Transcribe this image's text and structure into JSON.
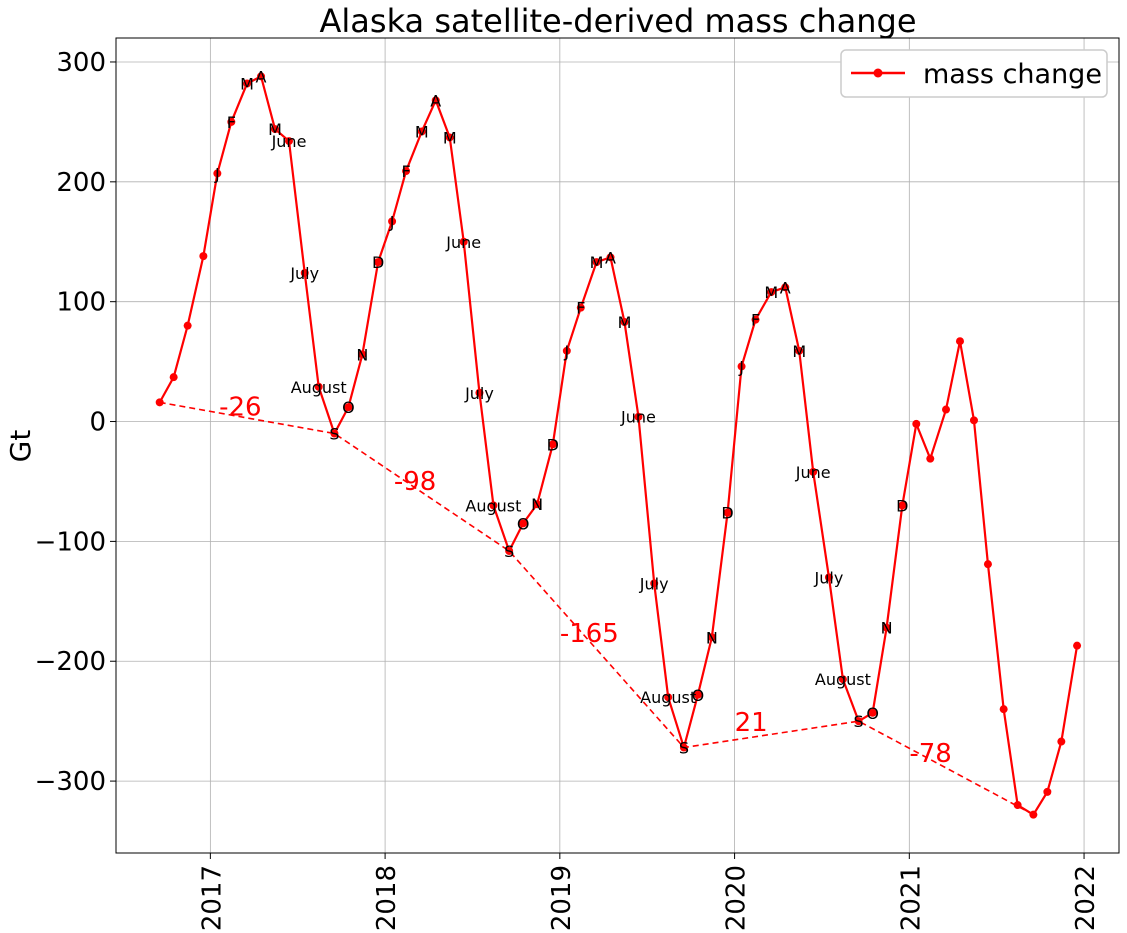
{
  "chart_data": {
    "type": "line",
    "title": "Alaska satellite-derived mass change",
    "ylabel": "Gt",
    "xlabel": "",
    "xlim": [
      2016.46,
      2022.2
    ],
    "ylim": [
      -360,
      320
    ],
    "grid": true,
    "legend_position": "top-right",
    "x_ticks": [
      2017,
      2018,
      2019,
      2020,
      2021,
      2022
    ],
    "x_tick_labels": [
      "2017",
      "2018",
      "2019",
      "2020",
      "2021",
      "2022"
    ],
    "y_ticks": [
      300,
      200,
      100,
      0,
      -100,
      -200,
      -300
    ],
    "y_tick_labels": [
      "300",
      "200",
      "100",
      "0",
      "−100",
      "−200",
      "−300"
    ],
    "series": [
      {
        "name": "mass change",
        "color": "#ff0000",
        "marker": "circle",
        "points": [
          {
            "x": 2016.71,
            "y": 16,
            "label": ""
          },
          {
            "x": 2016.79,
            "y": 37,
            "label": ""
          },
          {
            "x": 2016.87,
            "y": 80,
            "label": ""
          },
          {
            "x": 2016.96,
            "y": 138,
            "label": ""
          },
          {
            "x": 2017.04,
            "y": 207,
            "label": "J"
          },
          {
            "x": 2017.12,
            "y": 250,
            "label": "F"
          },
          {
            "x": 2017.21,
            "y": 282,
            "label": "M"
          },
          {
            "x": 2017.29,
            "y": 288,
            "label": "A"
          },
          {
            "x": 2017.37,
            "y": 244,
            "label": "M"
          },
          {
            "x": 2017.45,
            "y": 234,
            "label": "June"
          },
          {
            "x": 2017.54,
            "y": 124,
            "label": "July"
          },
          {
            "x": 2017.62,
            "y": 29,
            "label": "August"
          },
          {
            "x": 2017.71,
            "y": -10,
            "label": "S"
          },
          {
            "x": 2017.79,
            "y": 12,
            "label": "O"
          },
          {
            "x": 2017.87,
            "y": 56,
            "label": "N"
          },
          {
            "x": 2017.96,
            "y": 133,
            "label": "D"
          },
          {
            "x": 2018.04,
            "y": 167,
            "label": "J"
          },
          {
            "x": 2018.12,
            "y": 209,
            "label": "F"
          },
          {
            "x": 2018.21,
            "y": 242,
            "label": "M"
          },
          {
            "x": 2018.29,
            "y": 268,
            "label": "A"
          },
          {
            "x": 2018.37,
            "y": 237,
            "label": "M"
          },
          {
            "x": 2018.45,
            "y": 150,
            "label": "June"
          },
          {
            "x": 2018.54,
            "y": 24,
            "label": "July"
          },
          {
            "x": 2018.62,
            "y": -70,
            "label": "August"
          },
          {
            "x": 2018.71,
            "y": -108,
            "label": "S"
          },
          {
            "x": 2018.79,
            "y": -85,
            "label": "O"
          },
          {
            "x": 2018.87,
            "y": -69,
            "label": "N"
          },
          {
            "x": 2018.96,
            "y": -19,
            "label": "D"
          },
          {
            "x": 2019.04,
            "y": 59,
            "label": "J"
          },
          {
            "x": 2019.12,
            "y": 95,
            "label": "F"
          },
          {
            "x": 2019.21,
            "y": 133,
            "label": "M"
          },
          {
            "x": 2019.29,
            "y": 137,
            "label": "A"
          },
          {
            "x": 2019.37,
            "y": 83,
            "label": "M"
          },
          {
            "x": 2019.45,
            "y": 4,
            "label": "June"
          },
          {
            "x": 2019.54,
            "y": -135,
            "label": "July"
          },
          {
            "x": 2019.62,
            "y": -230,
            "label": "August"
          },
          {
            "x": 2019.71,
            "y": -272,
            "label": "S"
          },
          {
            "x": 2019.79,
            "y": -228,
            "label": "O"
          },
          {
            "x": 2019.87,
            "y": -180,
            "label": "N"
          },
          {
            "x": 2019.96,
            "y": -76,
            "label": "D"
          },
          {
            "x": 2020.04,
            "y": 46,
            "label": "J"
          },
          {
            "x": 2020.12,
            "y": 85,
            "label": "F"
          },
          {
            "x": 2020.21,
            "y": 108,
            "label": "M"
          },
          {
            "x": 2020.29,
            "y": 112,
            "label": "A"
          },
          {
            "x": 2020.37,
            "y": 59,
            "label": "M"
          },
          {
            "x": 2020.45,
            "y": -42,
            "label": "June"
          },
          {
            "x": 2020.54,
            "y": -130,
            "label": "July"
          },
          {
            "x": 2020.62,
            "y": -215,
            "label": "August"
          },
          {
            "x": 2020.71,
            "y": -250,
            "label": "S"
          },
          {
            "x": 2020.79,
            "y": -243,
            "label": "O"
          },
          {
            "x": 2020.87,
            "y": -172,
            "label": "N"
          },
          {
            "x": 2020.96,
            "y": -70,
            "label": "D"
          },
          {
            "x": 2021.04,
            "y": -2,
            "label": ""
          },
          {
            "x": 2021.12,
            "y": -31,
            "label": ""
          },
          {
            "x": 2021.21,
            "y": 10,
            "label": ""
          },
          {
            "x": 2021.29,
            "y": 67,
            "label": ""
          },
          {
            "x": 2021.37,
            "y": 1,
            "label": ""
          },
          {
            "x": 2021.45,
            "y": -119,
            "label": ""
          },
          {
            "x": 2021.54,
            "y": -240,
            "label": ""
          },
          {
            "x": 2021.62,
            "y": -320,
            "label": ""
          },
          {
            "x": 2021.71,
            "y": -328,
            "label": ""
          },
          {
            "x": 2021.79,
            "y": -309,
            "label": ""
          },
          {
            "x": 2021.87,
            "y": -267,
            "label": ""
          },
          {
            "x": 2021.96,
            "y": -187,
            "label": ""
          }
        ]
      }
    ],
    "trend_line": {
      "color": "#ff0000",
      "style": "dashed",
      "points": [
        {
          "x": 2016.71,
          "y": 16
        },
        {
          "x": 2017.71,
          "y": -10
        },
        {
          "x": 2018.71,
          "y": -108
        },
        {
          "x": 2019.71,
          "y": -272
        },
        {
          "x": 2020.71,
          "y": -250
        },
        {
          "x": 2021.71,
          "y": -328
        }
      ]
    },
    "annotations": [
      {
        "text": "-26",
        "x": 2017.05,
        "y": 5
      },
      {
        "text": "-98",
        "x": 2018.05,
        "y": -57
      },
      {
        "text": "-165",
        "x": 2019.0,
        "y": -184
      },
      {
        "text": "21",
        "x": 2020.0,
        "y": -258
      },
      {
        "text": "-78",
        "x": 2021.0,
        "y": -284
      }
    ]
  }
}
